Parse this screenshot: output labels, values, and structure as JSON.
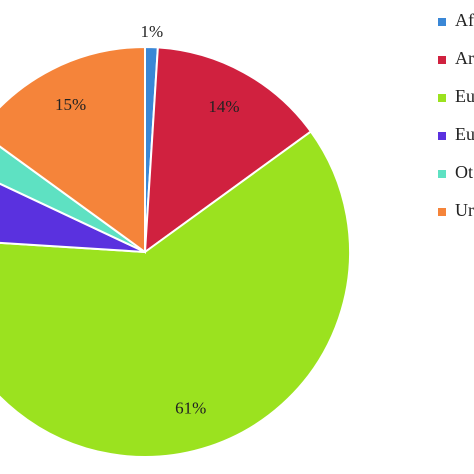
{
  "chart_data": {
    "type": "pie",
    "categories": [
      "Af",
      "Ar",
      "Eu",
      "Eu",
      "Ot",
      "Ur"
    ],
    "values": [
      1,
      14,
      61,
      6,
      3,
      15
    ],
    "value_labels": [
      "1%",
      "14%",
      "61%",
      null,
      null,
      "15%"
    ],
    "colors": [
      "#3a87d6",
      "#d0213f",
      "#9be21f",
      "#5a31df",
      "#5ee1c2",
      "#f5843a"
    ],
    "legend": "right"
  }
}
